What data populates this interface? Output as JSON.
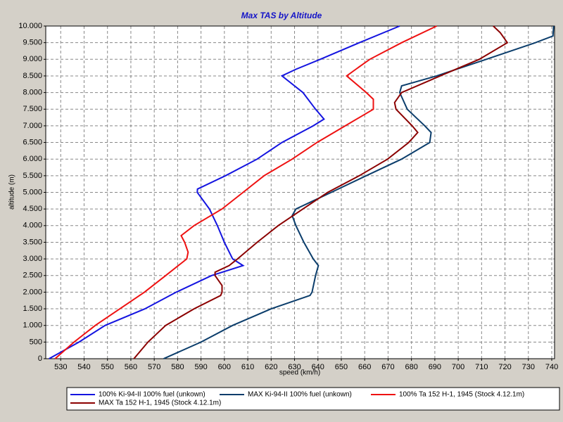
{
  "chart_data": {
    "type": "line",
    "title": "Max TAS by Altitude",
    "x_label": "speed (km/h)",
    "y_label": "altitude (m)",
    "xlim": [
      523.6,
      741.2
    ],
    "ylim": [
      0,
      10000
    ],
    "xticks": [
      530,
      540,
      550,
      560,
      570,
      580,
      590,
      600,
      610,
      620,
      630,
      640,
      650,
      660,
      670,
      680,
      690,
      700,
      710,
      720,
      730,
      740
    ],
    "yticks": [
      0,
      500,
      {
        "value": 1000,
        "label": "1.000"
      },
      {
        "value": 1500,
        "label": "1.500"
      },
      {
        "value": 2000,
        "label": "2.000"
      },
      {
        "value": 2500,
        "label": "2.500"
      },
      {
        "value": 3000,
        "label": "3.000"
      },
      {
        "value": 3500,
        "label": "3.500"
      },
      {
        "value": 4000,
        "label": "4.000"
      },
      {
        "value": 4500,
        "label": "4.500"
      },
      {
        "value": 5000,
        "label": "5.000"
      },
      {
        "value": 5500,
        "label": "5.500"
      },
      {
        "value": 6000,
        "label": "6.000"
      },
      {
        "value": 6500,
        "label": "6.500"
      },
      {
        "value": 7000,
        "label": "7.000"
      },
      {
        "value": 7500,
        "label": "7.500"
      },
      {
        "value": 8000,
        "label": "8.000"
      },
      {
        "value": 8500,
        "label": "8.500"
      },
      {
        "value": 9000,
        "label": "9.000"
      },
      {
        "value": 9500,
        "label": "9.500"
      },
      {
        "value": 10000,
        "label": "10.000"
      }
    ],
    "grid": true,
    "legend": "bottom",
    "series": [
      {
        "name": "100% Ki-94-II 100% fuel (unkown)",
        "color": "#1414e0",
        "x": [
          525,
          537.8,
          549,
          566,
          579.4,
          594.5,
          608,
          603.5,
          600,
          597,
          593.6,
          588.4,
          588.5,
          600.5,
          614,
          624.6,
          638,
          642.6,
          639,
          633.6,
          624.6,
          630.6,
          641,
          657.7,
          675
        ],
        "y": [
          0,
          500,
          1000,
          1500,
          2000,
          2500,
          2800,
          3000,
          3500,
          4000,
          4500,
          5000,
          5100,
          5500,
          6000,
          6500,
          7000,
          7200,
          7500,
          8000,
          8500,
          8700,
          9000,
          9500,
          10000
        ]
      },
      {
        "name": "MAX Ki-94-II 100% fuel (unkown)",
        "color": "#0b3d6b",
        "x": [
          574,
          590,
          603.5,
          620,
          636.6,
          637.5,
          639,
          640.2,
          638,
          634,
          630.6,
          629,
          630.6,
          636.6,
          645.7,
          660.7,
          675.8,
          687.8,
          688.4,
          685.7,
          678.2,
          675,
          675.8,
          690.8,
          712,
          733,
          740.5,
          740.8
        ],
        "y": [
          0,
          500,
          1000,
          1500,
          1900,
          2000,
          2500,
          2800,
          3000,
          3500,
          4000,
          4300,
          4500,
          4700,
          5000,
          5500,
          6000,
          6500,
          6800,
          7000,
          7500,
          8000,
          8200,
          8500,
          9000,
          9500,
          9700,
          10000
        ]
      },
      {
        "name": "100% Ta 152 H-1, 1945 (Stock 4.12.1m)",
        "color": "#ee1111",
        "x": [
          527.6,
          535.7,
          544.8,
          555.3,
          565.8,
          574.9,
          583.9,
          584.5,
          583,
          581.5,
          587,
          599,
          608,
          617,
          629,
          639.6,
          651.7,
          663.7,
          663.7,
          660.7,
          652.3,
          656.2,
          662.2,
          675.8,
          690.8
        ],
        "y": [
          0,
          500,
          1000,
          1500,
          2000,
          2500,
          3000,
          3200,
          3500,
          3700,
          4000,
          4500,
          5000,
          5500,
          6000,
          6500,
          7000,
          7500,
          7800,
          8000,
          8500,
          8700,
          9000,
          9500,
          10000
        ]
      },
      {
        "name": "MAX Ta 152 H-1, 1945 (Stock 4.12.1m)",
        "color": "#8b0000",
        "x": [
          561.3,
          567.3,
          574.9,
          587,
          598.4,
          599,
          599,
          596,
          596,
          602,
          605.6,
          614,
          623,
          633.6,
          644.2,
          657.7,
          669.8,
          678.8,
          682.7,
          680.3,
          673.4,
          672.8,
          675.8,
          692.3,
          709,
          721,
          718,
          715
        ],
        "y": [
          0,
          500,
          1000,
          1500,
          1900,
          2000,
          2200,
          2500,
          2600,
          2800,
          3000,
          3500,
          4000,
          4500,
          5000,
          5500,
          6000,
          6500,
          6800,
          7000,
          7500,
          7700,
          8000,
          8500,
          9000,
          9500,
          9800,
          10000
        ]
      }
    ]
  }
}
